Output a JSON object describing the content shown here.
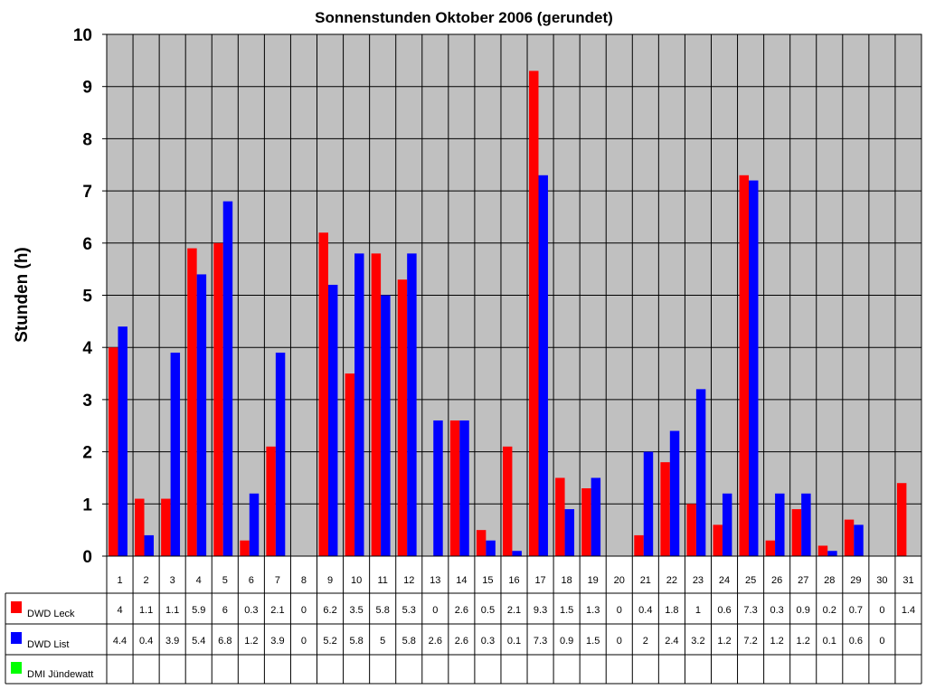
{
  "chart_data": {
    "type": "bar",
    "title": "Sonnenstunden Oktober 2006 (gerundet)",
    "xlabel": "",
    "ylabel": "Stunden (h)",
    "ylim": [
      0,
      10
    ],
    "yticks": [
      0,
      1,
      2,
      3,
      4,
      5,
      6,
      7,
      8,
      9,
      10
    ],
    "grid": true,
    "legend_position": "data-table-left",
    "categories": [
      "1",
      "2",
      "3",
      "4",
      "5",
      "6",
      "7",
      "8",
      "9",
      "10",
      "11",
      "12",
      "13",
      "14",
      "15",
      "16",
      "17",
      "18",
      "19",
      "20",
      "21",
      "22",
      "23",
      "24",
      "25",
      "26",
      "27",
      "28",
      "29",
      "30",
      "31"
    ],
    "series": [
      {
        "name": "DWD Leck",
        "color": "#ff0000",
        "values": [
          4,
          1.1,
          1.1,
          5.9,
          6,
          0.3,
          2.1,
          0,
          6.2,
          3.5,
          5.8,
          5.3,
          0,
          2.6,
          0.5,
          2.1,
          9.3,
          1.5,
          1.3,
          0,
          0.4,
          1.8,
          1,
          0.6,
          7.3,
          0.3,
          0.9,
          0.2,
          0.7,
          0,
          1.4
        ]
      },
      {
        "name": "DWD List",
        "color": "#0000ff",
        "values": [
          4.4,
          0.4,
          3.9,
          5.4,
          6.8,
          1.2,
          3.9,
          0,
          5.2,
          5.8,
          5,
          5.8,
          2.6,
          2.6,
          0.3,
          0.1,
          7.3,
          0.9,
          1.5,
          0,
          2,
          2.4,
          3.2,
          1.2,
          7.2,
          1.2,
          1.2,
          0.1,
          0.6,
          0,
          null
        ]
      },
      {
        "name": "DMI Jündewatt",
        "color": "#00ff00",
        "values": [
          null,
          null,
          null,
          null,
          null,
          null,
          null,
          null,
          null,
          null,
          null,
          null,
          null,
          null,
          null,
          null,
          null,
          null,
          null,
          null,
          null,
          null,
          null,
          null,
          null,
          null,
          null,
          null,
          null,
          null,
          null
        ]
      }
    ],
    "table_text": {
      "DWD Leck": [
        "4",
        "1.1",
        "1.1",
        "5.9",
        "6",
        "0.3",
        "2.1",
        "0",
        "6.2",
        "3.5",
        "5.8",
        "5.3",
        "0",
        "2.6",
        "0.5",
        "2.1",
        "9.3",
        "1.5",
        "1.3",
        "0",
        "0.4",
        "1.8",
        "1",
        "0.6",
        "7.3",
        "0.3",
        "0.9",
        "0.2",
        "0.7",
        "0",
        "1.4"
      ],
      "DWD List": [
        "4.4",
        "0.4",
        "3.9",
        "5.4",
        "6.8",
        "1.2",
        "3.9",
        "0",
        "5.2",
        "5.8",
        "5",
        "5.8",
        "2.6",
        "2.6",
        "0.3",
        "0.1",
        "7.3",
        "0.9",
        "1.5",
        "0",
        "2",
        "2.4",
        "3.2",
        "1.2",
        "7.2",
        "1.2",
        "1.2",
        "0.1",
        "0.6",
        "0",
        ""
      ],
      "DMI Jündewatt": [
        "",
        "",
        "",
        "",
        "",
        "",
        "",
        "",
        "",
        "",
        "",
        "",
        "",
        "",
        "",
        "",
        "",
        "",
        "",
        "",
        "",
        "",
        "",
        "",
        "",
        "",
        "",
        "",
        "",
        "",
        ""
      ]
    },
    "colors": {
      "plot_background": "#c0c0c0",
      "grid": "#000000"
    }
  }
}
